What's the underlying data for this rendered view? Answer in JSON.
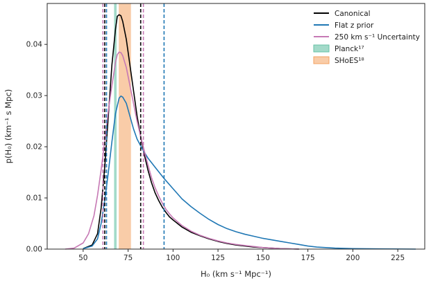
{
  "chart_data": {
    "type": "line",
    "xlabel": "H₀ (km s⁻¹ Mpc⁻¹)",
    "ylabel": "p(H₀) (km⁻¹ s Mpc)",
    "xlim": [
      30,
      240
    ],
    "ylim": [
      0,
      0.048
    ],
    "xticks": [
      50,
      75,
      100,
      125,
      150,
      175,
      200,
      225
    ],
    "yticks": [
      0.0,
      0.01,
      0.02,
      0.03,
      0.04
    ],
    "xtick_labels": [
      "50",
      "75",
      "100",
      "125",
      "150",
      "175",
      "200",
      "225"
    ],
    "ytick_labels": [
      "0.00",
      "0.01",
      "0.02",
      "0.03",
      "0.04"
    ],
    "grid": false,
    "legend_position": "top-right",
    "series": [
      {
        "name": "Canonical",
        "color": "#000000",
        "x": [
          50,
          55,
          58,
          60,
          62,
          64,
          66,
          68,
          69,
          70,
          71,
          72,
          74,
          76,
          78,
          80,
          82,
          84,
          86,
          88,
          90,
          92,
          94,
          96,
          98,
          100,
          105,
          110,
          115,
          120,
          125,
          130,
          135,
          140,
          145,
          150,
          155,
          160,
          170
        ],
        "y": [
          0.0001,
          0.0008,
          0.003,
          0.008,
          0.016,
          0.026,
          0.036,
          0.043,
          0.0455,
          0.0458,
          0.0456,
          0.0445,
          0.041,
          0.036,
          0.031,
          0.026,
          0.022,
          0.0185,
          0.0155,
          0.013,
          0.011,
          0.0095,
          0.0082,
          0.0072,
          0.0063,
          0.0057,
          0.0043,
          0.0033,
          0.0026,
          0.002,
          0.0015,
          0.0011,
          0.0008,
          0.0006,
          0.0004,
          0.0003,
          0.0002,
          0.0001,
          0.0
        ]
      },
      {
        "name": "Flat z prior",
        "color": "#1f77b4",
        "x": [
          50,
          55,
          58,
          60,
          62,
          64,
          66,
          68,
          70,
          71,
          72,
          74,
          76,
          78,
          80,
          83,
          86,
          90,
          95,
          100,
          105,
          110,
          115,
          120,
          125,
          130,
          135,
          140,
          145,
          150,
          155,
          160,
          165,
          170,
          175,
          180,
          190,
          200,
          215,
          235
        ],
        "y": [
          0.0001,
          0.0006,
          0.002,
          0.005,
          0.0095,
          0.015,
          0.021,
          0.0265,
          0.0295,
          0.0299,
          0.0297,
          0.0285,
          0.026,
          0.0235,
          0.0215,
          0.0195,
          0.0178,
          0.016,
          0.0138,
          0.0118,
          0.0098,
          0.0083,
          0.007,
          0.0058,
          0.0048,
          0.004,
          0.0034,
          0.0029,
          0.0025,
          0.0021,
          0.0018,
          0.0015,
          0.0012,
          0.0009,
          0.0006,
          0.0004,
          0.0002,
          0.0001,
          5e-05,
          0.0
        ]
      },
      {
        "name": "250 km s⁻¹ Uncertainty",
        "color": "#c678b4",
        "x": [
          40,
          45,
          50,
          53,
          56,
          58,
          60,
          62,
          64,
          66,
          68,
          69,
          70,
          71,
          72,
          74,
          76,
          78,
          80,
          82,
          84,
          86,
          88,
          90,
          92,
          94,
          96,
          98,
          100,
          105,
          110,
          115,
          120,
          125,
          130,
          135,
          140,
          145,
          150,
          160,
          170
        ],
        "y": [
          0.0,
          0.0002,
          0.0012,
          0.003,
          0.0065,
          0.0105,
          0.0155,
          0.021,
          0.027,
          0.032,
          0.0365,
          0.038,
          0.0385,
          0.0384,
          0.0378,
          0.0355,
          0.032,
          0.0285,
          0.025,
          0.022,
          0.0192,
          0.0165,
          0.014,
          0.012,
          0.0104,
          0.009,
          0.0078,
          0.0069,
          0.0061,
          0.0046,
          0.0035,
          0.0027,
          0.0021,
          0.0016,
          0.0012,
          0.0009,
          0.0007,
          0.0005,
          0.0003,
          0.0001,
          0.0
        ]
      }
    ],
    "bands": [
      {
        "name": "Planck¹⁷",
        "color": "#66c2a5",
        "opacity": 0.6,
        "range": [
          67.2,
          68.6
        ]
      },
      {
        "name": "SHoES¹⁸",
        "color": "#f4a261",
        "opacity": 0.55,
        "range": [
          69.8,
          76.6
        ]
      }
    ],
    "vlines": [
      {
        "x": 61.0,
        "color": "#c678b4"
      },
      {
        "x": 62.0,
        "color": "#000000"
      },
      {
        "x": 63.0,
        "color": "#1f77b4"
      },
      {
        "x": 82.0,
        "color": "#000000"
      },
      {
        "x": 83.5,
        "color": "#c678b4"
      },
      {
        "x": 95.0,
        "color": "#1f77b4"
      }
    ]
  }
}
